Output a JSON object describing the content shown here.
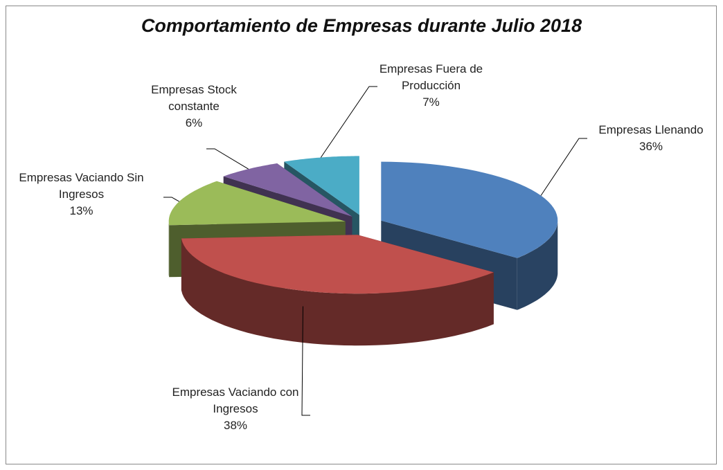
{
  "chart_data": {
    "type": "pie",
    "title": "Comportamiento de Empresas durante Julio 2018",
    "categories": [
      "Empresas Llenando",
      "Empresas Vaciando con Ingresos",
      "Empresas Vaciando Sin Ingresos",
      "Empresas Stock constante",
      "Empresas Fuera de Producción"
    ],
    "values": [
      36,
      38,
      13,
      6,
      7
    ],
    "value_labels": [
      "36%",
      "38%",
      "13%",
      "6%",
      "7%"
    ],
    "colors": [
      "#4f81bd",
      "#c0504d",
      "#9bbb59",
      "#8064a2",
      "#4bacc6"
    ]
  }
}
